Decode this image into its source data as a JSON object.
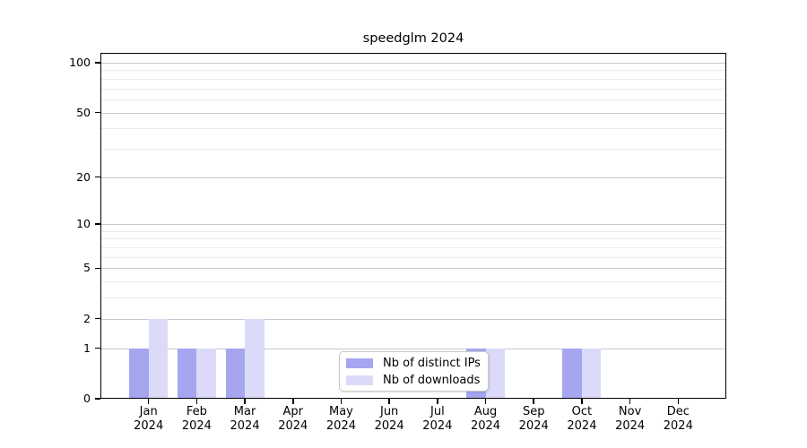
{
  "chart_data": {
    "type": "bar",
    "title": "speedglm 2024",
    "categories": [
      "Jan 2024",
      "Feb 2024",
      "Mar 2024",
      "Apr 2024",
      "May 2024",
      "Jun 2024",
      "Jul 2024",
      "Aug 2024",
      "Sep 2024",
      "Oct 2024",
      "Nov 2024",
      "Dec 2024"
    ],
    "series": [
      {
        "name": "Nb of distinct IPs",
        "color": "#a5a5f0",
        "values": [
          1,
          1,
          1,
          0,
          0,
          0,
          0,
          1,
          0,
          1,
          0,
          0
        ]
      },
      {
        "name": "Nb of downloads",
        "color": "#dbdbf9",
        "values": [
          2,
          1,
          2,
          0,
          0,
          0,
          0,
          1,
          0,
          1,
          0,
          0
        ]
      }
    ],
    "yscale": "log1p",
    "ylim": [
      0,
      115
    ],
    "yticks": [
      0,
      1,
      2,
      5,
      10,
      20,
      50,
      100
    ],
    "minor_gridlines": [
      3,
      4,
      6,
      7,
      8,
      9,
      30,
      40,
      60,
      70,
      80,
      90
    ],
    "legend": {
      "position": "bottom-center",
      "entries": [
        "Nb of distinct IPs",
        "Nb of downloads"
      ]
    },
    "colors": {
      "major_grid": "#c8c8c8",
      "minor_grid": "#ececec",
      "axis": "#000000",
      "background": "#ffffff"
    }
  }
}
